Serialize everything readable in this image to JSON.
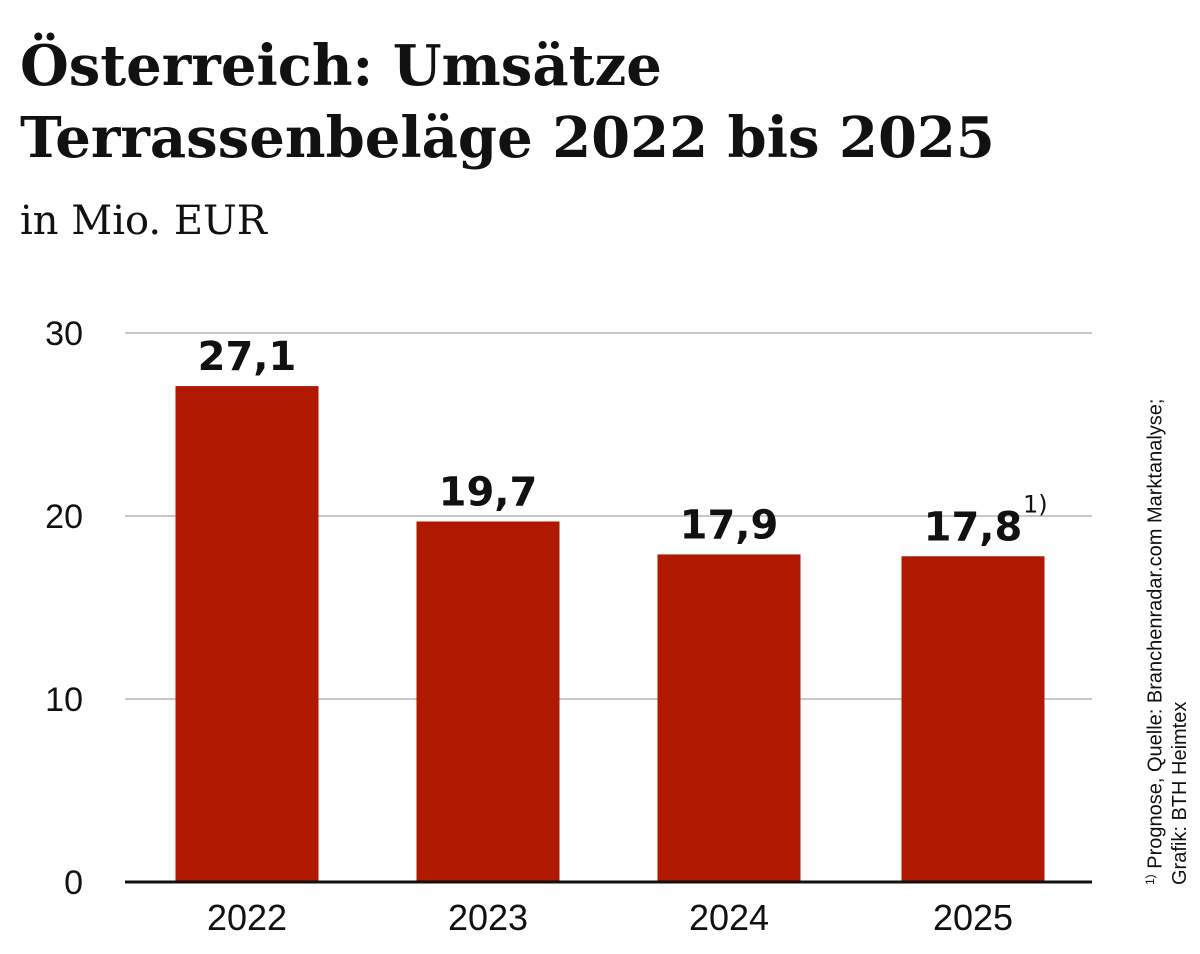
{
  "title": "Österreich: Umsätze Terrassenbeläge 2022 bis 2025",
  "subtitle": "in Mio. EUR",
  "footnote": {
    "marker": "1)",
    "line1": "Prognose, Quelle: Branchenradar.com Marktanalyse;",
    "line2": "Grafik: BTH Heimtex"
  },
  "colors": {
    "bar": "#B01800",
    "grid": "#c8c8c8",
    "axis": "#111111"
  },
  "chart_data": {
    "type": "bar",
    "title": "Österreich: Umsätze Terrassenbeläge 2022 bis 2025",
    "subtitle": "in Mio. EUR",
    "categories": [
      "2022",
      "2023",
      "2024",
      "2025"
    ],
    "values": [
      27.1,
      19.7,
      17.9,
      17.8
    ],
    "value_labels": [
      "27,1",
      "19,7",
      "17,9",
      "17,8"
    ],
    "value_annotations": [
      "",
      "",
      "",
      "1)"
    ],
    "ylim": [
      0,
      30
    ],
    "yticks": [
      0,
      10,
      20,
      30
    ],
    "ytick_labels": [
      "0",
      "10",
      "20",
      "30"
    ],
    "grid": true,
    "legend": "none"
  }
}
